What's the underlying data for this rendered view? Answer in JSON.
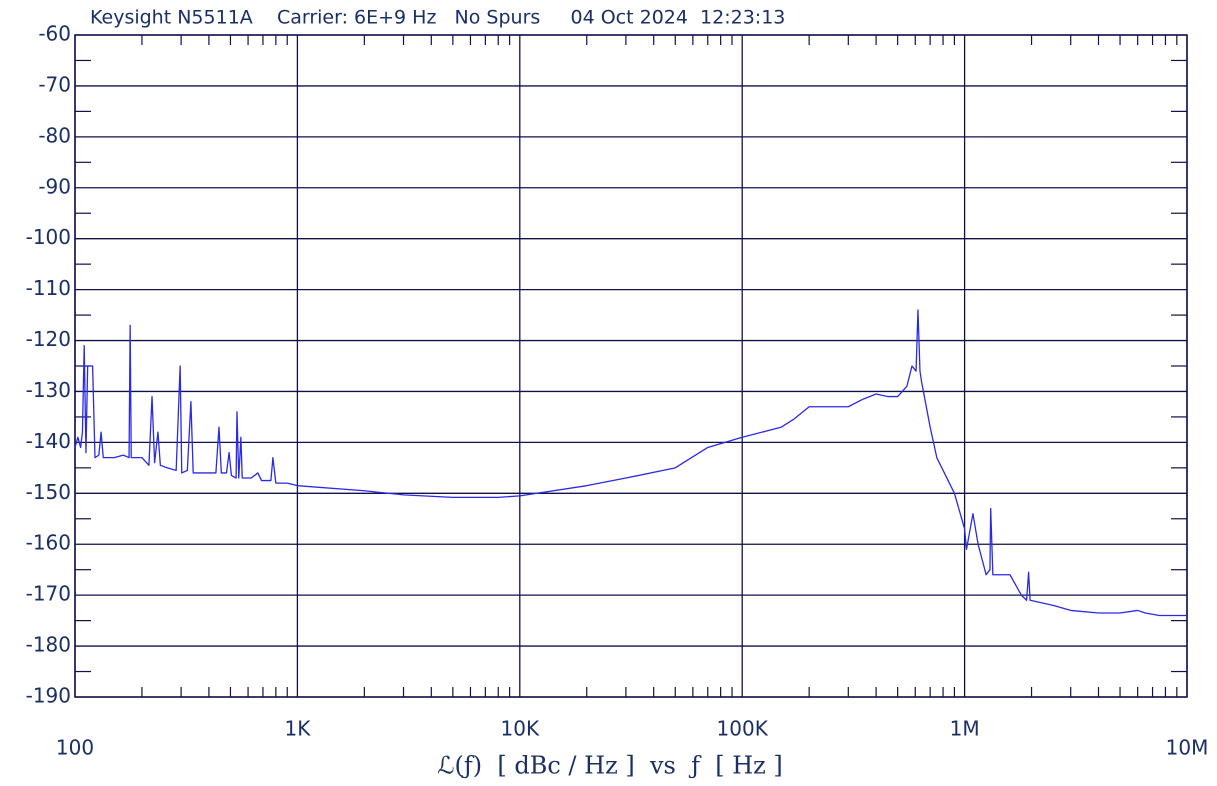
{
  "chart_data": {
    "type": "line",
    "title": "Keysight N5511A    Carrier: 6E+9 Hz   No Spurs     04 Oct 2024  12:23:13",
    "x_label": "ℒ(ƒ)  [ dBc / Hz ]  vs  ƒ  [ Hz ]",
    "x_scale": "log",
    "grid": true,
    "color": "#2a2ae6",
    "xlim": [
      100,
      10000000
    ],
    "ylim": [
      -190,
      -60
    ],
    "xticks": [
      100,
      {
        "value": 1000,
        "label": "1K"
      },
      {
        "value": 10000,
        "label": "10K"
      },
      {
        "value": 100000,
        "label": "100K"
      },
      {
        "value": 1000000,
        "label": "1M"
      },
      {
        "value": 10000000,
        "label": "10M"
      }
    ],
    "yticks": [
      -190,
      -180,
      -170,
      -160,
      -150,
      -140,
      -130,
      -120,
      -110,
      -100,
      -90,
      -80,
      -70,
      -60
    ],
    "xminorticks": [
      200,
      300,
      400,
      500,
      600,
      700,
      800,
      900,
      2000,
      3000,
      4000,
      5000,
      6000,
      7000,
      8000,
      9000,
      20000,
      30000,
      40000,
      50000,
      60000,
      70000,
      80000,
      90000,
      200000,
      300000,
      400000,
      500000,
      600000,
      700000,
      800000,
      900000,
      2000000,
      3000000,
      4000000,
      5000000,
      6000000,
      7000000,
      8000000,
      9000000
    ],
    "yminorticks": [
      -185,
      -175,
      -165,
      -155,
      -145,
      -135,
      -125,
      -115,
      -105,
      -95,
      -85,
      -75,
      -65
    ],
    "x": [
      100,
      103,
      106,
      108,
      110,
      112,
      114,
      120,
      123,
      128,
      131,
      134,
      140,
      150,
      165,
      175,
      177,
      179,
      200,
      215,
      222,
      228,
      236,
      242,
      260,
      285,
      297,
      302,
      320,
      332,
      340,
      380,
      430,
      444,
      455,
      480,
      493,
      505,
      530,
      535,
      545,
      557,
      565,
      620,
      664,
      690,
      760,
      776,
      800,
      900,
      1000,
      2000,
      3000,
      5000,
      8000,
      10000,
      20000,
      30000,
      50000,
      70000,
      100000,
      150000,
      170000,
      200000,
      300000,
      350000,
      400000,
      450000,
      500000,
      550000,
      580000,
      605000,
      617000,
      630000,
      640000,
      700000,
      750000,
      900000,
      1000000,
      1020000,
      1090000,
      1150000,
      1250000,
      1300000,
      1310000,
      1340000,
      1450000,
      1600000,
      1800000,
      1900000,
      1940000,
      1970000,
      2500000,
      3000000,
      4000000,
      5000000,
      6000000,
      6500000,
      7500000,
      10000000
    ],
    "values": [
      -141,
      -139,
      -141,
      -138,
      -121,
      -142,
      -125,
      -125,
      -143,
      -142.5,
      -138,
      -143,
      -143,
      -143,
      -142.5,
      -143,
      -117,
      -143,
      -143,
      -144.5,
      -131,
      -144,
      -138,
      -144.5,
      -145,
      -145.5,
      -125,
      -146,
      -145.5,
      -132,
      -146,
      -146,
      -146,
      -137,
      -146,
      -146,
      -142,
      -146.5,
      -147,
      -134,
      -147,
      -139,
      -147,
      -147,
      -146,
      -147.5,
      -147.5,
      -143,
      -148,
      -148,
      -148.5,
      -149.5,
      -150.3,
      -150.8,
      -150.8,
      -150.5,
      -148.5,
      -147,
      -145,
      -141,
      -139,
      -137,
      -135.5,
      -133,
      -133,
      -131.5,
      -130.5,
      -131,
      -131,
      -129,
      -125,
      -126,
      -114,
      -126,
      -128,
      -137,
      -143,
      -150,
      -157,
      -161,
      -154,
      -160,
      -166,
      -165,
      -153,
      -166,
      -166,
      -166,
      -170,
      -171,
      -165.5,
      -171,
      -172,
      -173,
      -173.5,
      -173.5,
      -173,
      -173.5,
      -174,
      -174
    ]
  }
}
